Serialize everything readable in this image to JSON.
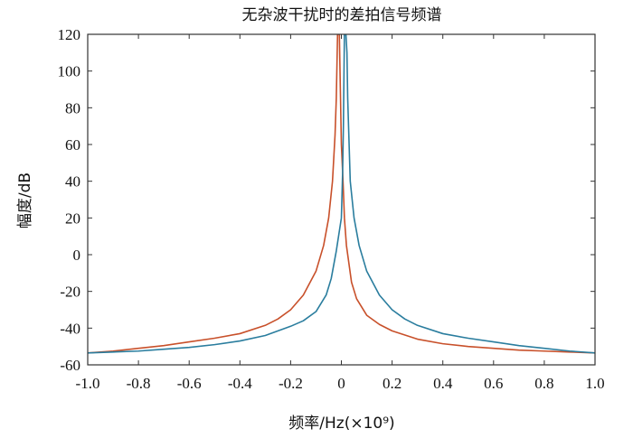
{
  "chart_data": {
    "type": "line",
    "title": "无杂波干扰时的差拍信号频谱",
    "xlabel": "频率/Hz(×10⁹)",
    "ylabel": "幅度/dB",
    "xlim": [
      -1.0,
      1.0
    ],
    "ylim": [
      -60,
      120
    ],
    "xticks": [
      -1.0,
      -0.8,
      -0.6,
      -0.4,
      -0.2,
      0,
      0.2,
      0.4,
      0.6,
      0.8,
      1.0
    ],
    "xtick_labels": [
      "-1.0",
      "-0.8",
      "-0.6",
      "-0.4",
      "-0.2",
      "0",
      "0.2",
      "0.4",
      "0.6",
      "0.8",
      "1.0"
    ],
    "yticks": [
      -60,
      -40,
      -20,
      0,
      20,
      40,
      60,
      80,
      100,
      120
    ],
    "ytick_labels": [
      "-60",
      "-40",
      "-20",
      "0",
      "20",
      "40",
      "60",
      "80",
      "100",
      "120"
    ],
    "grid": false,
    "legend": "none",
    "series": [
      {
        "color": "#c8502a",
        "x": [
          -1.0,
          -0.9,
          -0.8,
          -0.7,
          -0.6,
          -0.5,
          -0.4,
          -0.3,
          -0.25,
          -0.2,
          -0.15,
          -0.1,
          -0.07,
          -0.05,
          -0.035,
          -0.025,
          -0.02,
          -0.015,
          -0.012,
          -0.008,
          0.0,
          0.005,
          0.008,
          0.012,
          0.02,
          0.04,
          0.06,
          0.1,
          0.15,
          0.2,
          0.3,
          0.4,
          0.5,
          0.6,
          0.7,
          0.8,
          0.9,
          1.0
        ],
        "y": [
          -53.5,
          -52.5,
          -51.0,
          -49.5,
          -47.5,
          -45.5,
          -43.0,
          -38.5,
          -35.0,
          -30.0,
          -22.0,
          -9.0,
          5.0,
          20.0,
          40.0,
          65.0,
          85.0,
          120.0,
          120.0,
          120.0,
          60.0,
          45.0,
          35.0,
          20.0,
          5.0,
          -15.0,
          -24.0,
          -33.0,
          -38.0,
          -41.5,
          -46.0,
          -48.5,
          -50.0,
          -51.0,
          -52.0,
          -52.5,
          -53.0,
          -53.5
        ]
      },
      {
        "color": "#2a7d9e",
        "x": [
          -1.0,
          -0.9,
          -0.8,
          -0.7,
          -0.6,
          -0.5,
          -0.4,
          -0.3,
          -0.2,
          -0.15,
          -0.1,
          -0.06,
          -0.04,
          -0.02,
          0.0,
          0.005,
          0.008,
          0.012,
          0.018,
          0.022,
          0.025,
          0.035,
          0.05,
          0.07,
          0.1,
          0.15,
          0.2,
          0.25,
          0.3,
          0.4,
          0.5,
          0.6,
          0.7,
          0.8,
          0.9,
          1.0
        ],
        "y": [
          -53.5,
          -53.0,
          -52.5,
          -51.5,
          -50.5,
          -49.0,
          -47.0,
          -44.0,
          -39.0,
          -36.0,
          -31.0,
          -22.0,
          -13.0,
          2.0,
          20.0,
          45.0,
          70.0,
          120.0,
          120.0,
          110.0,
          85.0,
          40.0,
          20.0,
          5.0,
          -9.0,
          -22.0,
          -30.0,
          -35.0,
          -38.5,
          -43.0,
          -45.5,
          -47.5,
          -49.5,
          -51.0,
          -52.5,
          -53.5
        ]
      }
    ]
  }
}
